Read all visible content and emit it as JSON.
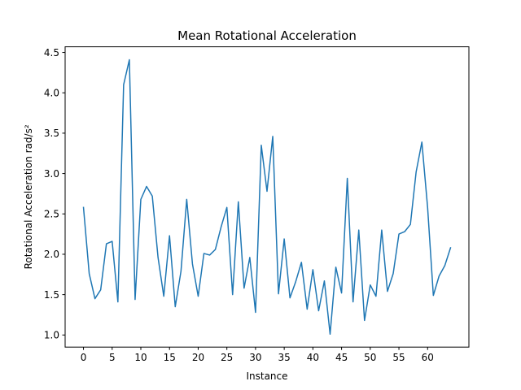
{
  "chart_data": {
    "type": "line",
    "title": "Mean Rotational Acceleration",
    "xlabel": "Instance",
    "ylabel": "Rotational Acceleration rad/s²",
    "xlim": [
      -3.2,
      67.2
    ],
    "ylim": [
      0.85,
      4.57
    ],
    "xticks": [
      0,
      5,
      10,
      15,
      20,
      25,
      30,
      35,
      40,
      45,
      50,
      55,
      60
    ],
    "yticks": [
      1.0,
      1.5,
      2.0,
      2.5,
      3.0,
      3.5,
      4.0,
      4.5
    ],
    "grid": false,
    "series": [
      {
        "color": "#1f77b4",
        "x": [
          0,
          1,
          2,
          3,
          4,
          5,
          6,
          7,
          8,
          9,
          10,
          11,
          12,
          13,
          14,
          15,
          16,
          17,
          18,
          19,
          20,
          21,
          22,
          23,
          24,
          25,
          26,
          27,
          28,
          29,
          30,
          31,
          32,
          33,
          34,
          35,
          36,
          37,
          38,
          39,
          40,
          41,
          42,
          43,
          44,
          45,
          46,
          47,
          48,
          49,
          50,
          51,
          52,
          53,
          54,
          55,
          56,
          57,
          58,
          59,
          60,
          61,
          62,
          63,
          64
        ],
        "values": [
          2.58,
          1.76,
          1.45,
          1.56,
          2.13,
          2.16,
          1.41,
          4.1,
          4.41,
          1.44,
          2.68,
          2.84,
          2.72,
          1.96,
          1.48,
          2.23,
          1.35,
          1.79,
          2.68,
          1.88,
          1.48,
          2.01,
          1.99,
          2.06,
          2.34,
          2.58,
          1.5,
          2.65,
          1.58,
          1.96,
          1.28,
          3.35,
          2.78,
          3.46,
          1.51,
          2.19,
          1.46,
          1.66,
          1.9,
          1.32,
          1.81,
          1.3,
          1.67,
          1.01,
          1.84,
          1.52,
          2.94,
          1.41,
          2.3,
          1.18,
          1.62,
          1.48,
          2.3,
          1.54,
          1.76,
          2.25,
          2.28,
          2.37,
          3.02,
          3.39,
          2.58,
          1.49,
          1.73,
          1.86,
          2.08
        ]
      }
    ]
  }
}
